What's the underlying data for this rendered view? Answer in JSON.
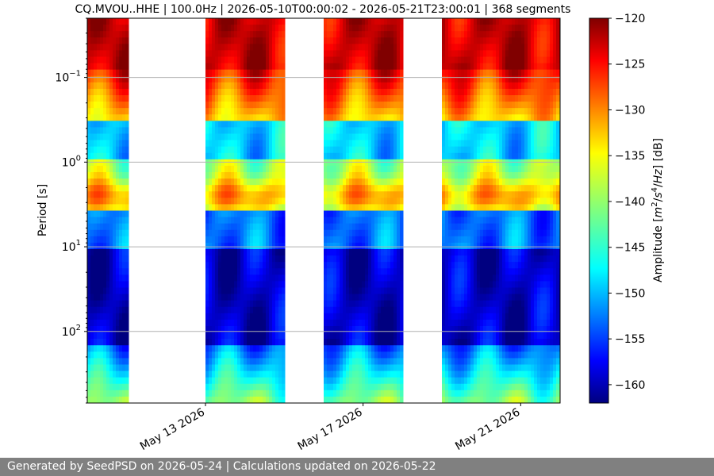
{
  "chart_data": {
    "type": "heatmap",
    "title": "CQ.MVOU..HHE | 100.0Hz | 2026-05-10T00:00:02 - 2026-05-21T23:00:01 | 368 segments",
    "ylabel": "Period [s]",
    "yscale": "log",
    "y_range": [
      0.02,
      700
    ],
    "y_ticks": [
      {
        "value": 0.1,
        "base": "10",
        "exp": "−1"
      },
      {
        "value": 1,
        "base": "10",
        "exp": "0"
      },
      {
        "value": 10,
        "base": "10",
        "exp": "1"
      },
      {
        "value": 100,
        "base": "10",
        "exp": "2"
      }
    ],
    "x_range": [
      "2026-05-10T00:00:00",
      "2026-05-22T00:00:00"
    ],
    "x_ticks": [
      {
        "date": "2026-05-13",
        "label": "May 13 2026"
      },
      {
        "date": "2026-05-17",
        "label": "May 17 2026"
      },
      {
        "date": "2026-05-21",
        "label": "May 21 2026"
      }
    ],
    "data_segments": [
      {
        "start": "2026-05-10T00:00:00",
        "end": "2026-05-11T00:00:00"
      },
      {
        "start": "2026-05-13T00:00:00",
        "end": "2026-05-15T00:00:00"
      },
      {
        "start": "2026-05-16T00:00:00",
        "end": "2026-05-18T00:00:00"
      },
      {
        "start": "2026-05-19T00:00:00",
        "end": "2026-05-22T00:00:00"
      }
    ],
    "grid": true,
    "colorbar": {
      "label_parts": [
        "Amplitude [",
        "m",
        "2",
        "/",
        "s",
        "4",
        "/",
        "Hz",
        "] [dB]"
      ],
      "range": [
        -162,
        -120
      ],
      "ticks": [
        "−120",
        "−125",
        "−130",
        "−135",
        "−140",
        "−145",
        "−150",
        "−155",
        "−160"
      ],
      "tick_values": [
        -120,
        -125,
        -130,
        -135,
        -140,
        -145,
        -150,
        -155,
        -160
      ],
      "colormap": "jet"
    }
  },
  "footer": {
    "text": "Generated by SeedPSD on 2026-05-24 | Calculations updated on 2026-05-22"
  }
}
